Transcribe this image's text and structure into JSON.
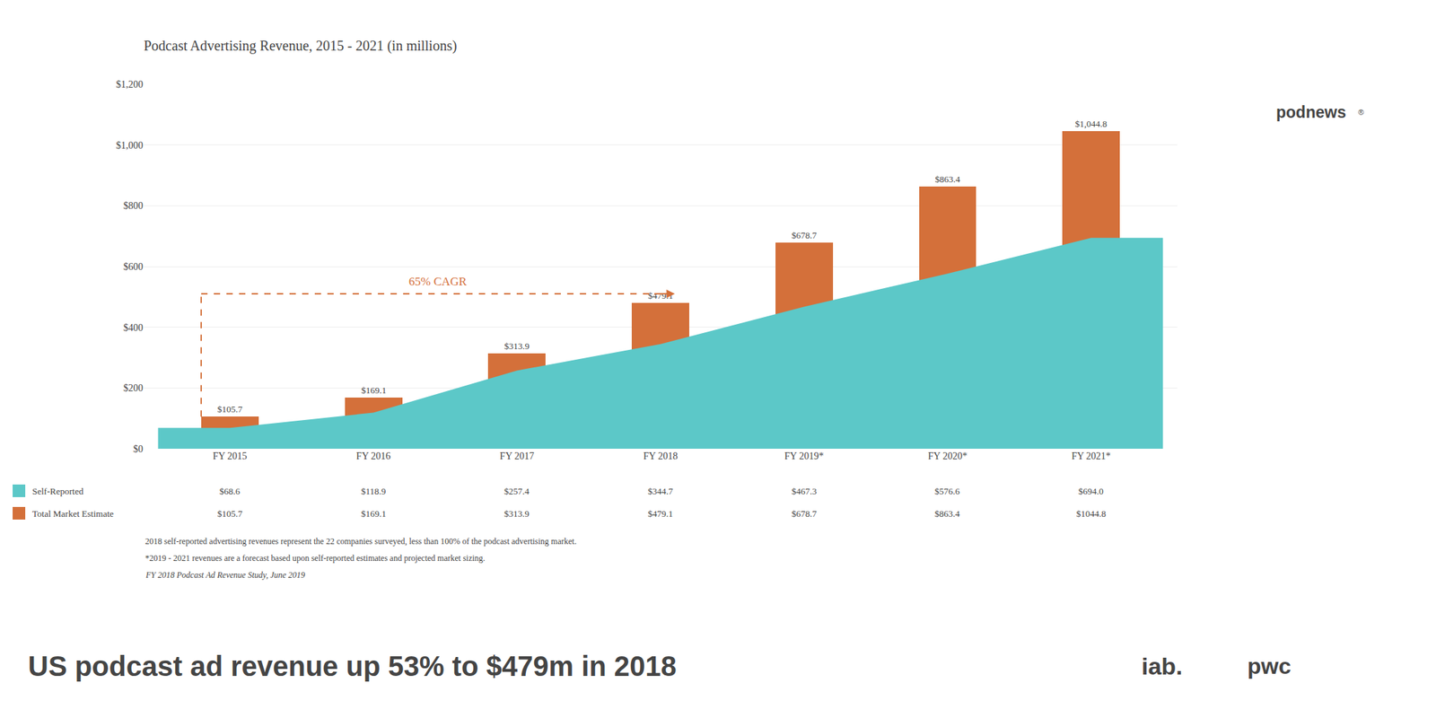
{
  "chart_data": {
    "type": "bar",
    "title": "Podcast Advertising Revenue, 2015 - 2021 (in millions)",
    "categories": [
      "FY 2015",
      "FY 2016",
      "FY 2017",
      "FY 2018",
      "FY 2019*",
      "FY 2020*",
      "FY 2021*"
    ],
    "series": [
      {
        "name": "Self-Reported",
        "type": "area",
        "color": "#5CC8C8",
        "values": [
          68.6,
          118.9,
          257.4,
          344.7,
          467.3,
          576.6,
          694.0
        ],
        "table_labels": [
          "$68.6",
          "$118.9",
          "$257.4",
          "$344.7",
          "$467.3",
          "$576.6",
          "$694.0"
        ]
      },
      {
        "name": "Total Market Estimate",
        "type": "bar",
        "color": "#D4703A",
        "values": [
          105.7,
          169.1,
          313.9,
          479.1,
          678.7,
          863.4,
          1044.8
        ],
        "value_labels": [
          "$105.7",
          "$169.1",
          "$313.9",
          "$479.1",
          "$678.7",
          "$863.4",
          "$1,044.8"
        ],
        "table_labels": [
          "$105.7",
          "$169.1",
          "$313.9",
          "$479.1",
          "$678.7",
          "$863.4",
          "$1044.8"
        ]
      }
    ],
    "data_labels": true,
    "ylim": [
      0,
      1200
    ],
    "yticks": [
      {
        "value": 0,
        "label": "$0"
      },
      {
        "value": 200,
        "label": "$200"
      },
      {
        "value": 400,
        "label": "$400"
      },
      {
        "value": 600,
        "label": "$600"
      },
      {
        "value": 800,
        "label": "$800"
      },
      {
        "value": 1000,
        "label": "$1,000"
      },
      {
        "value": 1200,
        "label": "$1,200"
      }
    ],
    "grid": true,
    "annotations": [
      {
        "text": "65% CAGR",
        "color": "#D4703A",
        "from": "FY 2015",
        "to": "FY 2018",
        "y": 510
      }
    ],
    "footnotes": [
      "2018 self-reported advertising revenues represent the 22 companies surveyed, less than 100% of the podcast advertising market.",
      "*2019 - 2021 revenues are a forecast based upon self-reported estimates and projected market sizing.",
      "FY 2018 Podcast Ad Revenue Study, June 2019"
    ],
    "banner": "US podcast ad revenue up 53% to $479m in 2018",
    "logos": [
      "iab.",
      "pwc",
      "podnews",
      "®"
    ]
  }
}
